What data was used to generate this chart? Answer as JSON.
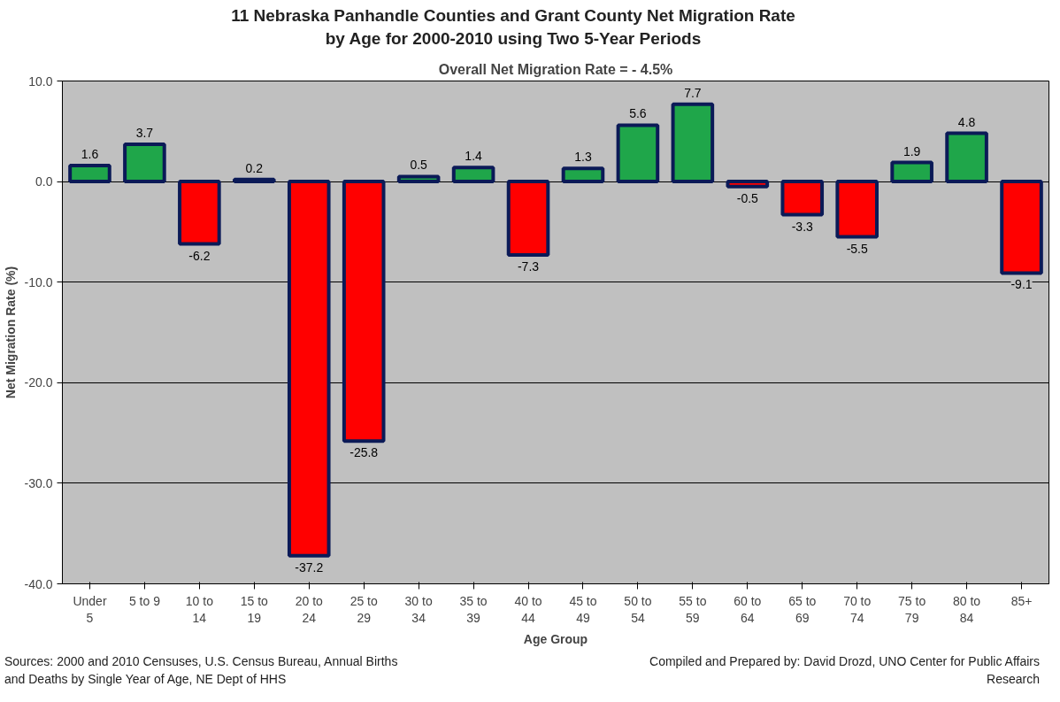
{
  "chart_data": {
    "type": "bar",
    "title": "11 Nebraska Panhandle Counties and Grant County Net Migration Rate\nby Age for 2000-2010 using Two 5-Year Periods",
    "subtitle": "Overall Net Migration Rate = - 4.5%",
    "xlabel": "Age Group",
    "ylabel": "Net Migration Rate (%)",
    "categories": [
      "Under 5",
      "5 to 9",
      "10 to 14",
      "15 to 19",
      "20 to 24",
      "25 to 29",
      "30 to 34",
      "35 to 39",
      "40 to 44",
      "45 to 49",
      "50 to 54",
      "55 to 59",
      "60 to 64",
      "65 to 69",
      "70 to 74",
      "75 to 79",
      "80 to 84",
      "85+"
    ],
    "values": [
      1.6,
      3.7,
      -6.2,
      0.2,
      -37.2,
      -25.8,
      0.5,
      1.4,
      -7.3,
      1.3,
      5.6,
      7.7,
      -0.5,
      -3.3,
      -5.5,
      1.9,
      4.8,
      -9.1
    ],
    "colors": [
      "#1fa64a",
      "#1fa64a",
      "#ff0000",
      "#1fa64a",
      "#ff0000",
      "#ff0000",
      "#1fa64a",
      "#1fa64a",
      "#ff0000",
      "#1fa64a",
      "#1fa64a",
      "#1fa64a",
      "#ff0000",
      "#ff0000",
      "#ff0000",
      "#1fa64a",
      "#1fa64a",
      "#ff0000"
    ],
    "ylim": [
      -40,
      10
    ],
    "yticks": [
      {
        "value": -40,
        "label": "-40.0"
      },
      {
        "value": -30,
        "label": "-30.0"
      },
      {
        "value": -20,
        "label": "-20.0"
      },
      {
        "value": -10,
        "label": "-10.0"
      },
      {
        "value": 0,
        "label": "0.0"
      },
      {
        "value": 10,
        "label": "10.0"
      }
    ],
    "grid": "y",
    "data_labels": true,
    "annotations": [
      "Sources: 2000 and 2010 Censuses, U.S. Census Bureau, Annual Births and Deaths by Single Year of Age, NE Dept of HHS",
      "Compiled and Prepared by: David Drozd, UNO Center for Public Affairs Research"
    ]
  }
}
